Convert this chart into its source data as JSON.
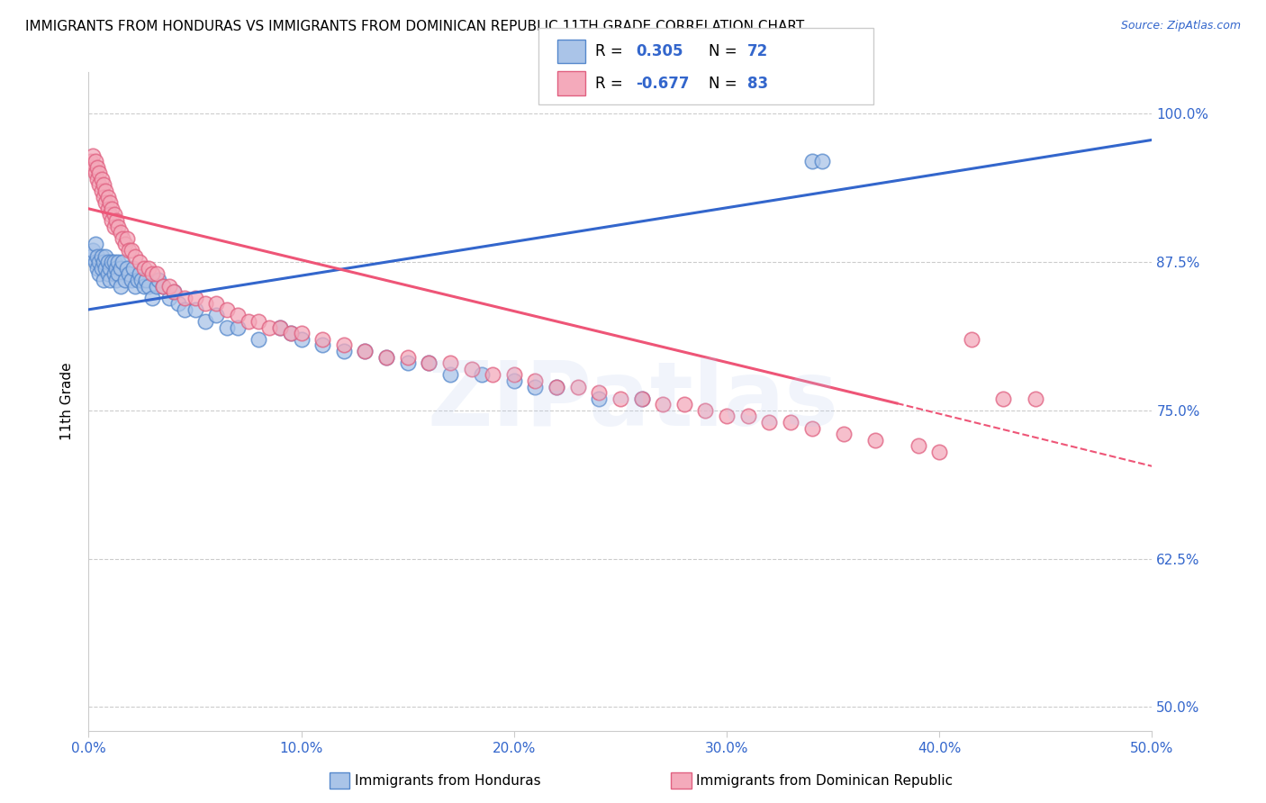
{
  "title": "IMMIGRANTS FROM HONDURAS VS IMMIGRANTS FROM DOMINICAN REPUBLIC 11TH GRADE CORRELATION CHART",
  "source": "Source: ZipAtlas.com",
  "xlabel_ticks": [
    "0.0%",
    "10.0%",
    "20.0%",
    "30.0%",
    "40.0%",
    "50.0%"
  ],
  "ylabel_ticks": [
    "50.0%",
    "62.5%",
    "75.0%",
    "87.5%",
    "100.0%"
  ],
  "ylabel_label": "11th Grade",
  "bottom_labels": [
    "Immigrants from Honduras",
    "Immigrants from Dominican Republic"
  ],
  "legend_r1": "R =  0.305",
  "legend_n1": "N = 72",
  "legend_r2": "R = -0.677",
  "legend_n2": "N = 83",
  "blue_fill": "#AAC4E8",
  "blue_edge": "#5588CC",
  "pink_fill": "#F4AABB",
  "pink_edge": "#E06080",
  "blue_line": "#3366CC",
  "pink_line": "#EE5577",
  "bg": "#FFFFFF",
  "watermark": "ZIPatlas",
  "xlim": [
    0.0,
    0.5
  ],
  "ylim": [
    0.48,
    1.035
  ],
  "yticks": [
    0.5,
    0.625,
    0.75,
    0.875,
    1.0
  ],
  "xticks": [
    0.0,
    0.1,
    0.2,
    0.3,
    0.4,
    0.5
  ],
  "blue_x": [
    0.001,
    0.002,
    0.003,
    0.003,
    0.004,
    0.004,
    0.005,
    0.005,
    0.006,
    0.006,
    0.007,
    0.007,
    0.008,
    0.008,
    0.009,
    0.009,
    0.01,
    0.01,
    0.011,
    0.012,
    0.012,
    0.013,
    0.013,
    0.014,
    0.014,
    0.015,
    0.015,
    0.016,
    0.017,
    0.018,
    0.019,
    0.02,
    0.021,
    0.022,
    0.023,
    0.024,
    0.025,
    0.026,
    0.027,
    0.028,
    0.03,
    0.032,
    0.033,
    0.035,
    0.038,
    0.04,
    0.042,
    0.045,
    0.05,
    0.055,
    0.06,
    0.065,
    0.07,
    0.08,
    0.09,
    0.095,
    0.1,
    0.11,
    0.12,
    0.13,
    0.14,
    0.15,
    0.16,
    0.17,
    0.185,
    0.2,
    0.21,
    0.22,
    0.24,
    0.26,
    0.34,
    0.345
  ],
  "blue_y": [
    0.88,
    0.885,
    0.875,
    0.89,
    0.87,
    0.88,
    0.875,
    0.865,
    0.87,
    0.88,
    0.875,
    0.86,
    0.87,
    0.88,
    0.865,
    0.875,
    0.87,
    0.86,
    0.875,
    0.865,
    0.875,
    0.87,
    0.86,
    0.875,
    0.865,
    0.87,
    0.855,
    0.875,
    0.86,
    0.87,
    0.865,
    0.86,
    0.87,
    0.855,
    0.86,
    0.865,
    0.86,
    0.855,
    0.86,
    0.855,
    0.845,
    0.855,
    0.86,
    0.855,
    0.845,
    0.85,
    0.84,
    0.835,
    0.835,
    0.825,
    0.83,
    0.82,
    0.82,
    0.81,
    0.82,
    0.815,
    0.81,
    0.805,
    0.8,
    0.8,
    0.795,
    0.79,
    0.79,
    0.78,
    0.78,
    0.775,
    0.77,
    0.77,
    0.76,
    0.76,
    0.96,
    0.96
  ],
  "pink_x": [
    0.001,
    0.002,
    0.002,
    0.003,
    0.003,
    0.004,
    0.004,
    0.005,
    0.005,
    0.006,
    0.006,
    0.007,
    0.007,
    0.008,
    0.008,
    0.009,
    0.009,
    0.01,
    0.01,
    0.011,
    0.011,
    0.012,
    0.012,
    0.013,
    0.014,
    0.015,
    0.016,
    0.017,
    0.018,
    0.019,
    0.02,
    0.022,
    0.024,
    0.026,
    0.028,
    0.03,
    0.032,
    0.035,
    0.038,
    0.04,
    0.045,
    0.05,
    0.055,
    0.06,
    0.065,
    0.07,
    0.075,
    0.08,
    0.085,
    0.09,
    0.095,
    0.1,
    0.11,
    0.12,
    0.13,
    0.14,
    0.15,
    0.16,
    0.17,
    0.18,
    0.19,
    0.2,
    0.21,
    0.22,
    0.23,
    0.24,
    0.25,
    0.26,
    0.27,
    0.28,
    0.29,
    0.3,
    0.31,
    0.32,
    0.33,
    0.34,
    0.355,
    0.37,
    0.39,
    0.4,
    0.415,
    0.43,
    0.445
  ],
  "pink_y": [
    0.96,
    0.955,
    0.965,
    0.95,
    0.96,
    0.945,
    0.955,
    0.95,
    0.94,
    0.945,
    0.935,
    0.94,
    0.93,
    0.935,
    0.925,
    0.93,
    0.92,
    0.925,
    0.915,
    0.92,
    0.91,
    0.915,
    0.905,
    0.91,
    0.905,
    0.9,
    0.895,
    0.89,
    0.895,
    0.885,
    0.885,
    0.88,
    0.875,
    0.87,
    0.87,
    0.865,
    0.865,
    0.855,
    0.855,
    0.85,
    0.845,
    0.845,
    0.84,
    0.84,
    0.835,
    0.83,
    0.825,
    0.825,
    0.82,
    0.82,
    0.815,
    0.815,
    0.81,
    0.805,
    0.8,
    0.795,
    0.795,
    0.79,
    0.79,
    0.785,
    0.78,
    0.78,
    0.775,
    0.77,
    0.77,
    0.765,
    0.76,
    0.76,
    0.755,
    0.755,
    0.75,
    0.745,
    0.745,
    0.74,
    0.74,
    0.735,
    0.73,
    0.725,
    0.72,
    0.715,
    0.81,
    0.76,
    0.76
  ],
  "blue_trend_x0": 0.0,
  "blue_trend_y0": 0.835,
  "blue_trend_x1": 0.5,
  "blue_trend_y1": 0.978,
  "pink_trend_x0": 0.0,
  "pink_trend_y0": 0.92,
  "pink_trend_x1_solid": 0.38,
  "pink_trend_y1_solid": 0.756,
  "pink_trend_x1_dash": 0.5,
  "pink_trend_y1_dash": 0.703
}
